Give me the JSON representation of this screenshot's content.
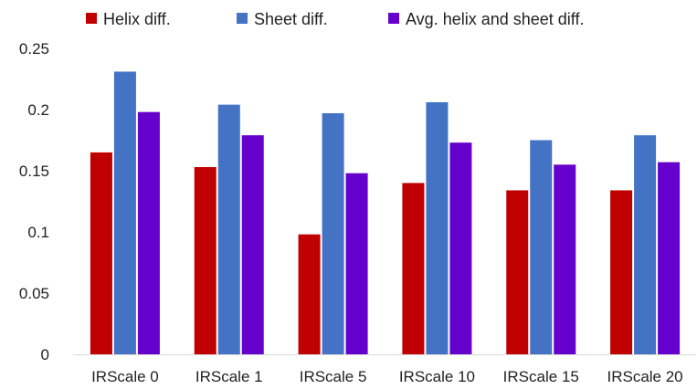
{
  "chart_data": {
    "type": "bar",
    "title": "",
    "xlabel": "",
    "ylabel": "",
    "categories": [
      "IRScale 0",
      "IRScale 1",
      "IRScale 5",
      "IRScale 10",
      "IRScale 15",
      "IRScale 20"
    ],
    "series": [
      {
        "name": "Helix diff.",
        "color": "#c00000",
        "values": [
          0.165,
          0.153,
          0.098,
          0.14,
          0.134,
          0.134
        ]
      },
      {
        "name": "Sheet diff.",
        "color": "#4472c4",
        "values": [
          0.231,
          0.204,
          0.197,
          0.206,
          0.175,
          0.179
        ]
      },
      {
        "name": "Avg. helix and sheet diff.",
        "color": "#6600cc",
        "values": [
          0.198,
          0.179,
          0.148,
          0.173,
          0.155,
          0.157
        ]
      }
    ],
    "ylim": [
      0,
      0.25
    ],
    "yticks": [
      "0",
      "0.05",
      "0.1",
      "0.15",
      "0.2",
      "0.25"
    ],
    "grid": false,
    "legend_position": "top"
  }
}
